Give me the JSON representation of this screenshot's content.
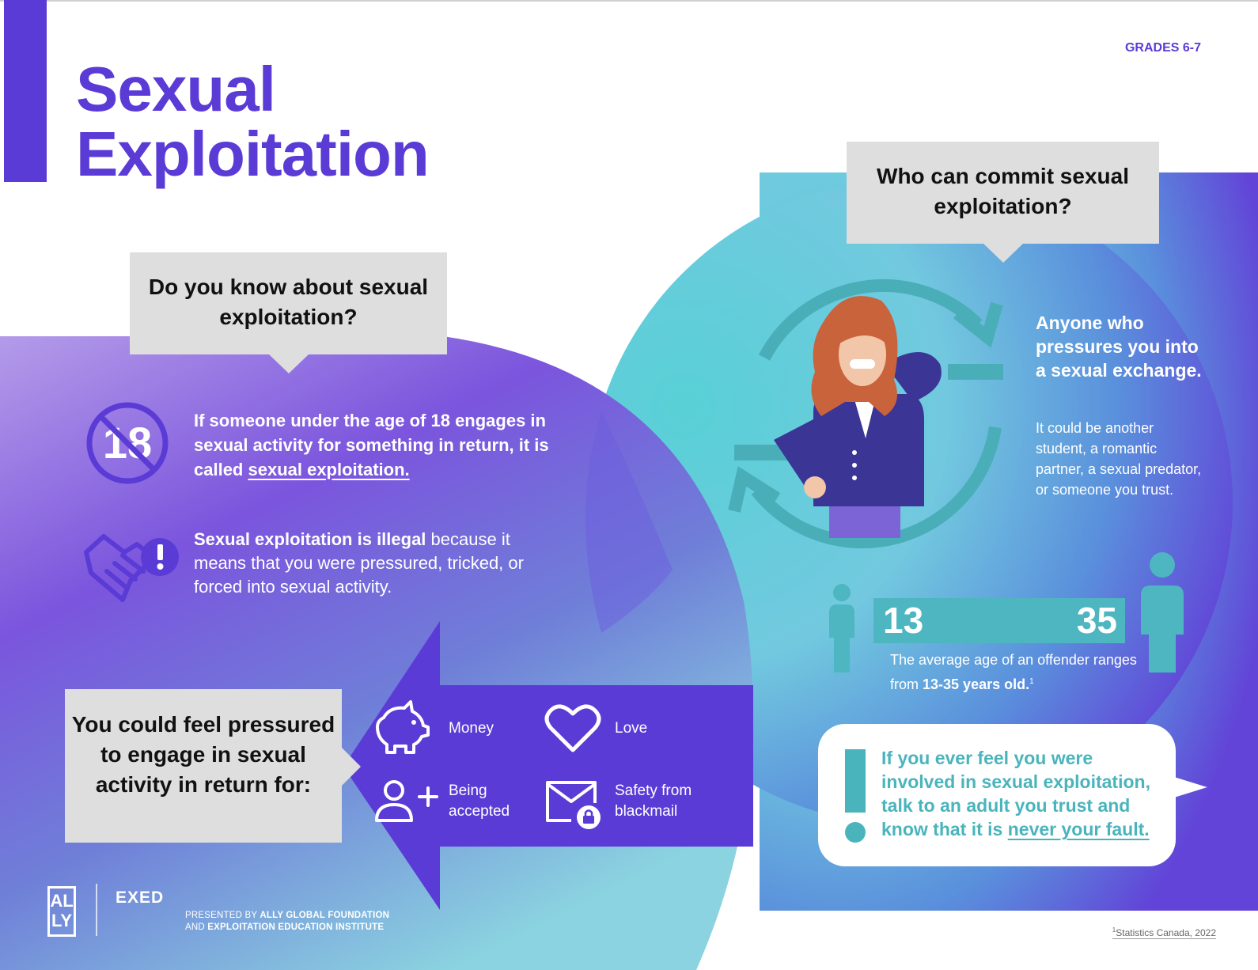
{
  "header": {
    "title_line1": "Sexual",
    "title_line2": "Exploitation",
    "grade_label": "GRADES 6-7"
  },
  "left_section": {
    "question": "Do you know about sexual exploitation?",
    "age_icon_text": "18",
    "fact1_text": "If someone under the age of 18 engages in sexual activity for something in return, it is called ",
    "fact1_link": "sexual exploitation.",
    "fact2_bold": "Sexual exploitation is illegal",
    "fact2_rest": " because it means that you were pressured, tricked, or forced into sexual activity.",
    "pressure_heading": "You could feel pressured to engage in sexual activity in return for:",
    "items": [
      {
        "label": "Money",
        "icon": "piggy-bank-icon"
      },
      {
        "label": "Love",
        "icon": "heart-icon"
      },
      {
        "label": "Being accepted",
        "icon": "add-person-icon"
      },
      {
        "label": "Safety from blackmail",
        "icon": "locked-envelope-icon"
      }
    ]
  },
  "right_section": {
    "question": "Who can commit sexual exploitation?",
    "anyone_heading": "Anyone who pressures you into a sexual exchange.",
    "anyone_detail": "It could be another student, a romantic partner, a sexual predator, or someone you trust.",
    "age_min": "13",
    "age_max": "35",
    "age_text_start": "The average age of an offender ranges from ",
    "age_text_bold": "13-35 years old.",
    "age_footnote": "1",
    "callout_text": "If you ever feel you were involved in sexual exploitation, talk to an adult you trust and know that it is ",
    "callout_link": "never your fault."
  },
  "footer": {
    "ally_logo": "AL LY",
    "exed_logo": "EXED",
    "presented_prefix": "PRESENTED BY ",
    "presented_line1_bold": "ALLY GLOBAL FOUNDATION",
    "presented_line2_prefix": "AND ",
    "presented_line2_bold": "EXPLOITATION EDUCATION INSTITUTE",
    "source_sup": "1",
    "source": "Statistics Canada, 2022"
  },
  "colors": {
    "brand_purple": "#5b3bd6",
    "teal": "#4db6c0",
    "bubble_grey": "#dedede"
  }
}
